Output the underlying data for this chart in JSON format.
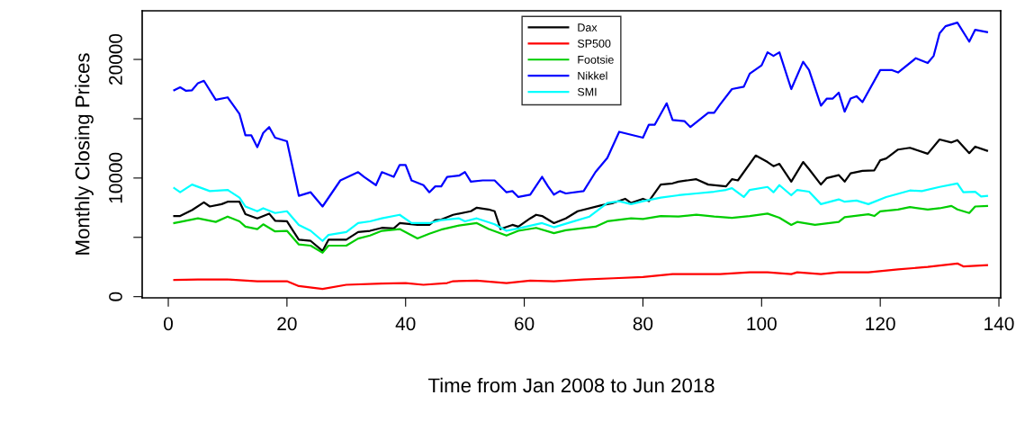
{
  "chart_data": {
    "type": "line",
    "xlabel": "Time from Jan 2008 to Jun 2018",
    "ylabel": "Monthly Closing Prices",
    "xlim": [
      -4.4,
      140.3
    ],
    "ylim": [
      -100,
      24100
    ],
    "xticks": [
      0,
      20,
      40,
      60,
      80,
      100,
      120,
      140
    ],
    "yticks": [
      0,
      {
        "value": 5000,
        "label": null
      },
      10000,
      {
        "value": 15000,
        "label": null
      },
      20000
    ],
    "grid": false,
    "legend": "top",
    "marker": "none",
    "line_style": "solid",
    "series": [
      {
        "name": "Dax",
        "color": "#000000",
        "x": [
          1,
          2,
          4,
          6,
          7,
          9,
          10,
          12,
          13,
          15,
          17,
          18,
          20,
          22,
          24,
          26,
          27,
          30,
          32,
          34,
          36,
          38,
          39,
          42,
          44,
          45,
          46,
          48,
          51,
          52,
          54,
          55,
          56,
          58,
          59,
          61,
          62,
          63,
          65,
          67,
          69,
          73,
          75,
          77,
          78,
          80,
          81,
          83,
          85,
          86,
          89,
          91,
          94,
          95,
          96,
          99,
          101,
          102,
          103,
          105,
          107,
          108,
          110,
          111,
          113,
          114,
          115,
          117,
          119,
          120,
          121,
          123,
          125,
          128,
          130,
          132,
          133,
          135,
          136,
          138
        ],
        "values": [
          6800,
          6800,
          7300,
          7950,
          7600,
          7800,
          8000,
          8000,
          6950,
          6600,
          7000,
          6400,
          6350,
          4800,
          4700,
          3850,
          4800,
          4800,
          5450,
          5550,
          5800,
          5750,
          6200,
          6050,
          6050,
          6450,
          6500,
          6900,
          7200,
          7500,
          7350,
          7200,
          5700,
          6050,
          5900,
          6600,
          6900,
          6800,
          6200,
          6600,
          7200,
          7700,
          7900,
          8250,
          7900,
          8250,
          8050,
          9450,
          9550,
          9700,
          9900,
          9450,
          9300,
          9900,
          9800,
          11900,
          11350,
          11000,
          11200,
          9700,
          11350,
          10750,
          9450,
          10000,
          10250,
          9700,
          10400,
          10600,
          10650,
          11500,
          11650,
          12400,
          12550,
          12050,
          13250,
          13000,
          13200,
          12100,
          12650,
          12300
        ]
      },
      {
        "name": "SP500",
        "color": "#ff0000",
        "x": [
          1,
          5,
          10,
          15,
          20,
          22,
          26,
          30,
          36,
          40,
          43,
          47,
          48,
          52,
          57,
          61,
          65,
          70,
          75,
          80,
          85,
          93,
          98,
          101,
          105,
          106,
          110,
          113,
          118,
          123,
          128,
          133,
          134,
          138
        ],
        "values": [
          1400,
          1450,
          1450,
          1300,
          1300,
          890,
          650,
          1000,
          1100,
          1150,
          1000,
          1150,
          1300,
          1350,
          1150,
          1350,
          1300,
          1450,
          1550,
          1650,
          1900,
          1900,
          2050,
          2050,
          1900,
          2050,
          1900,
          2050,
          2050,
          2300,
          2500,
          2800,
          2550,
          2650
        ]
      },
      {
        "name": "Footsie",
        "color": "#00cd00",
        "x": [
          1,
          2,
          5,
          8,
          10,
          12,
          13,
          15,
          16,
          18,
          20,
          22,
          24,
          26,
          27,
          30,
          32,
          34,
          36,
          39,
          42,
          44,
          46,
          49,
          52,
          54,
          57,
          59,
          62,
          65,
          67,
          72,
          74,
          78,
          80,
          83,
          86,
          89,
          92,
          95,
          98,
          101,
          103,
          105,
          106,
          109,
          113,
          114,
          118,
          119,
          120,
          123,
          125,
          128,
          130,
          132,
          133,
          135,
          136,
          138
        ],
        "values": [
          6200,
          6300,
          6600,
          6300,
          6750,
          6350,
          5900,
          5700,
          6100,
          5500,
          5550,
          4400,
          4300,
          3700,
          4300,
          4300,
          4900,
          5150,
          5550,
          5700,
          4900,
          5300,
          5650,
          6000,
          6200,
          5700,
          5150,
          5550,
          5800,
          5350,
          5600,
          5900,
          6350,
          6600,
          6550,
          6800,
          6750,
          6900,
          6750,
          6650,
          6800,
          7000,
          6650,
          6050,
          6300,
          6050,
          6300,
          6700,
          6950,
          6800,
          7200,
          7350,
          7550,
          7350,
          7450,
          7650,
          7350,
          7050,
          7600,
          7650
        ]
      },
      {
        "name": "Nikkel",
        "color": "#0000ff",
        "x": [
          1,
          2,
          3,
          4,
          5,
          6,
          8,
          10,
          12,
          13,
          14,
          15,
          16,
          17,
          18,
          20,
          22,
          24,
          26,
          29,
          32,
          33,
          35,
          36,
          38,
          39,
          40,
          41,
          43,
          44,
          45,
          46,
          47,
          49,
          50,
          51,
          53,
          55,
          57,
          58,
          59,
          61,
          63,
          64,
          65,
          66,
          67,
          70,
          72,
          74,
          76,
          80,
          81,
          82,
          84,
          85,
          87,
          88,
          91,
          92,
          93,
          95,
          97,
          98,
          100,
          101,
          102,
          103,
          105,
          107,
          108,
          110,
          111,
          112,
          113,
          114,
          115,
          116,
          117,
          120,
          122,
          123,
          126,
          128,
          129,
          130,
          131,
          133,
          135,
          136,
          138
        ],
        "values": [
          17400,
          17650,
          17350,
          17400,
          18000,
          18200,
          16600,
          16800,
          15400,
          13600,
          13600,
          12600,
          13800,
          14300,
          13400,
          13100,
          8500,
          8800,
          7600,
          9800,
          10500,
          10100,
          9400,
          10500,
          10100,
          11100,
          11100,
          9800,
          9400,
          8800,
          9300,
          9300,
          10100,
          10200,
          10500,
          9700,
          9800,
          9800,
          8800,
          8900,
          8400,
          8600,
          10100,
          9300,
          8600,
          8900,
          8700,
          8900,
          10500,
          11700,
          13900,
          13400,
          14500,
          14500,
          16300,
          14900,
          14800,
          14300,
          15500,
          15500,
          16200,
          17500,
          17700,
          18800,
          19500,
          20600,
          20300,
          20600,
          17500,
          19800,
          19100,
          16100,
          16700,
          16700,
          17200,
          15600,
          16700,
          16900,
          16400,
          19100,
          19100,
          18900,
          20100,
          19700,
          20300,
          22200,
          22800,
          23100,
          21500,
          22500,
          22300
        ]
      },
      {
        "name": "SMI",
        "color": "#00ffff",
        "x": [
          1,
          2,
          4,
          7,
          10,
          12,
          13,
          15,
          16,
          18,
          20,
          22,
          24,
          26,
          27,
          30,
          32,
          34,
          36,
          39,
          41,
          44,
          46,
          49,
          50,
          52,
          55,
          57,
          59,
          63,
          65,
          68,
          71,
          74,
          76,
          78,
          80,
          83,
          86,
          89,
          92,
          94,
          95,
          97,
          98,
          101,
          102,
          103,
          105,
          106,
          108,
          110,
          113,
          114,
          116,
          118,
          121,
          125,
          127,
          130,
          133,
          134,
          136,
          137,
          138
        ],
        "values": [
          9150,
          8800,
          9450,
          8900,
          9000,
          8350,
          7600,
          7200,
          7450,
          7050,
          7200,
          6050,
          5550,
          4700,
          5200,
          5450,
          6200,
          6350,
          6600,
          6900,
          6200,
          6200,
          6450,
          6600,
          6350,
          6600,
          6100,
          5550,
          5750,
          6200,
          5850,
          6300,
          6750,
          7900,
          8050,
          7800,
          8050,
          8350,
          8550,
          8700,
          8850,
          9000,
          9150,
          8400,
          9000,
          9250,
          8800,
          9400,
          8550,
          9000,
          8850,
          7800,
          8200,
          8000,
          8100,
          7800,
          8400,
          8950,
          8900,
          9250,
          9550,
          8800,
          8850,
          8450,
          8500
        ]
      }
    ]
  }
}
